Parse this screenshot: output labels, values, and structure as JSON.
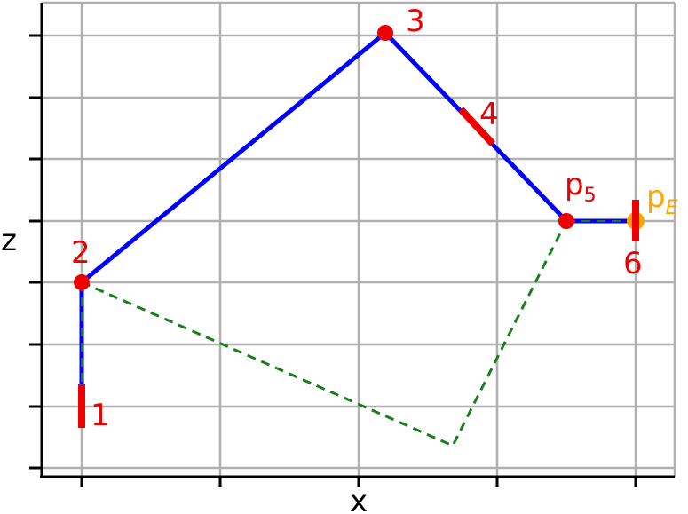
{
  "diagram": {
    "axis_labels": {
      "x": "x",
      "z": "z"
    },
    "colors": {
      "grid": "#b0b0b0",
      "axis": "#000000",
      "chain": "#0000ff",
      "dashed": "#1a7f1a",
      "joint": "#ee0000",
      "end_effector": "#ffa500"
    },
    "labels": {
      "j1": "1",
      "j2": "2",
      "j3": "3",
      "j4": "4",
      "j6": "6",
      "p5_base": "p",
      "p5_sub": "5",
      "pE_base": "p",
      "pE_sub": "E"
    }
  }
}
